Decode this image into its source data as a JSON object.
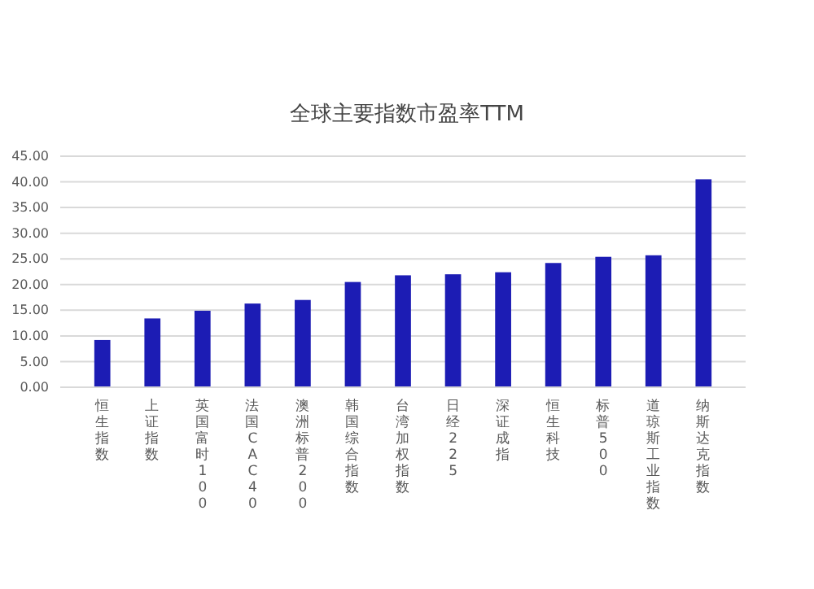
{
  "chart_data": {
    "type": "bar",
    "title": "全球主要指数市盈率TTM",
    "categories": [
      "恒生指数",
      "上证指数",
      "英国富时100",
      "法国CAC40",
      "澳洲标普200",
      "韩国综合指数",
      "台湾加权指数",
      "日经225",
      "深证成指",
      "恒生科技",
      "标普500",
      "道琼斯工业指数",
      "纳斯达克指数"
    ],
    "values": [
      9.2,
      13.4,
      14.9,
      16.3,
      17.0,
      20.5,
      21.8,
      22.0,
      22.4,
      24.2,
      25.4,
      25.7,
      40.5
    ],
    "color": "#1c1cb4",
    "ylim": [
      0,
      45
    ],
    "yticks": [
      {
        "value": 0,
        "label": "0.00"
      },
      {
        "value": 5,
        "label": "5.00"
      },
      {
        "value": 10,
        "label": "10.00"
      },
      {
        "value": 15,
        "label": "15.00"
      },
      {
        "value": 20,
        "label": "20.00"
      },
      {
        "value": 25,
        "label": "25.00"
      },
      {
        "value": 30,
        "label": "30.00"
      },
      {
        "value": 35,
        "label": "35.00"
      },
      {
        "value": 40,
        "label": "40.00"
      },
      {
        "value": 45,
        "label": "45.00"
      }
    ],
    "grid": "y"
  }
}
